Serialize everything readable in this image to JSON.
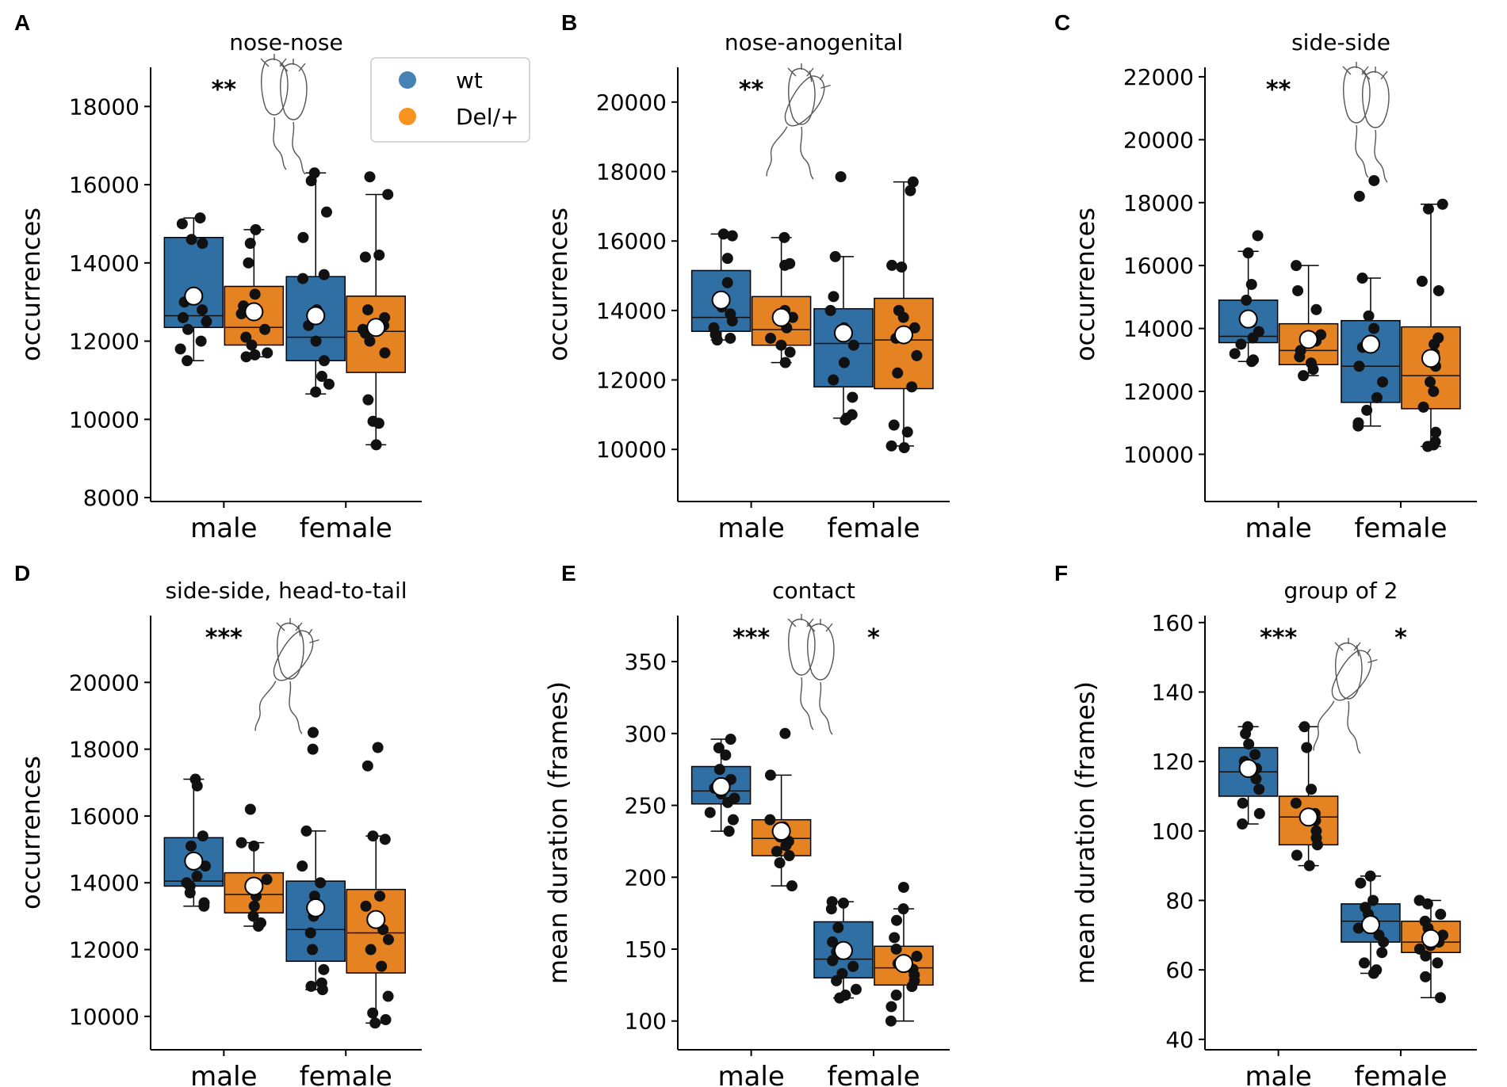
{
  "colors": {
    "wt": "#2f6fa3",
    "del": "#e58322"
  },
  "legend": {
    "items": [
      {
        "label": "wt",
        "color": "#4682b4"
      },
      {
        "label": "Del/+",
        "color": "#f7931e"
      }
    ]
  },
  "chart_data": [
    {
      "type": "box",
      "letter": "A",
      "title": "nose-nose",
      "ylabel": "occurrences",
      "ylim": [
        7900,
        19000
      ],
      "yticks": [
        "8000",
        "10000",
        "12000",
        "14000",
        "16000",
        "18000"
      ],
      "categories": [
        "male",
        "female"
      ],
      "significance": [
        "**",
        ""
      ],
      "groups": [
        {
          "category": "male",
          "genotype": "wt",
          "q1": 12350,
          "median": 12650,
          "q3": 14650,
          "whisker_low": 11500,
          "whisker_high": 15150,
          "mean": 13150,
          "points": [
            15150,
            15000,
            14600,
            14500,
            13000,
            12800,
            12600,
            12500,
            12300,
            12000,
            11800,
            11500
          ]
        },
        {
          "category": "male",
          "genotype": "Del/+",
          "q1": 11900,
          "median": 12350,
          "q3": 13400,
          "whisker_low": 11600,
          "whisker_high": 14850,
          "mean": 12750,
          "points": [
            14850,
            14500,
            14000,
            13200,
            12900,
            12700,
            12300,
            12100,
            11900,
            11700,
            11600,
            11650
          ]
        },
        {
          "category": "female",
          "genotype": "wt",
          "q1": 11500,
          "median": 12100,
          "q3": 13650,
          "whisker_low": 10650,
          "whisker_high": 16300,
          "mean": 12650,
          "points": [
            16300,
            16100,
            15300,
            14650,
            13700,
            13600,
            12800,
            12400,
            12000,
            11500,
            11100,
            10900,
            10700
          ]
        },
        {
          "category": "female",
          "genotype": "Del/+",
          "q1": 11200,
          "median": 12250,
          "q3": 13150,
          "whisker_low": 9350,
          "whisker_high": 15750,
          "mean": 12350,
          "points": [
            16200,
            15750,
            14200,
            14150,
            12800,
            12600,
            12400,
            12300,
            12200,
            12000,
            11700,
            10500,
            9950,
            9900,
            9350
          ]
        }
      ]
    },
    {
      "type": "box",
      "letter": "B",
      "title": "nose-anogenital",
      "ylabel": "occurrences",
      "ylim": [
        8500,
        21000
      ],
      "yticks": [
        "10000",
        "12000",
        "14000",
        "16000",
        "18000",
        "20000"
      ],
      "categories": [
        "male",
        "female"
      ],
      "significance": [
        "**",
        ""
      ],
      "groups": [
        {
          "category": "male",
          "genotype": "wt",
          "q1": 13400,
          "median": 13800,
          "q3": 15150,
          "whisker_low": 13150,
          "whisker_high": 16200,
          "mean": 14300,
          "points": [
            16200,
            16150,
            15500,
            14800,
            14100,
            13900,
            13700,
            13500,
            13300,
            13200,
            13150
          ]
        },
        {
          "category": "male",
          "genotype": "Del/+",
          "q1": 13000,
          "median": 13450,
          "q3": 14400,
          "whisker_low": 12500,
          "whisker_high": 16100,
          "mean": 13800,
          "points": [
            16100,
            15350,
            15300,
            14000,
            13800,
            13500,
            13200,
            13000,
            12800,
            12500
          ]
        },
        {
          "category": "female",
          "genotype": "wt",
          "q1": 11800,
          "median": 13050,
          "q3": 14050,
          "whisker_low": 10900,
          "whisker_high": 15550,
          "mean": 13350,
          "points": [
            17850,
            15550,
            14400,
            14000,
            13500,
            13000,
            12500,
            12000,
            11500,
            11000,
            10900,
            10850
          ]
        },
        {
          "category": "female",
          "genotype": "Del/+",
          "q1": 11750,
          "median": 13150,
          "q3": 14350,
          "whisker_low": 10100,
          "whisker_high": 17700,
          "mean": 13300,
          "points": [
            17700,
            17450,
            15300,
            15250,
            14000,
            13800,
            13500,
            13200,
            12700,
            12200,
            11800,
            10700,
            10500,
            10100,
            10050
          ]
        }
      ]
    },
    {
      "type": "box",
      "letter": "C",
      "title": "side-side",
      "ylabel": "occurrences",
      "ylim": [
        8500,
        22300
      ],
      "yticks": [
        "10000",
        "12000",
        "14000",
        "16000",
        "18000",
        "20000",
        "22000"
      ],
      "categories": [
        "male",
        "female"
      ],
      "significance": [
        "**",
        ""
      ],
      "groups": [
        {
          "category": "male",
          "genotype": "wt",
          "q1": 13550,
          "median": 13750,
          "q3": 14900,
          "whisker_low": 12950,
          "whisker_high": 16450,
          "mean": 14300,
          "points": [
            16950,
            16400,
            15400,
            14900,
            14200,
            13900,
            13700,
            13500,
            13200,
            13000,
            12950
          ]
        },
        {
          "category": "male",
          "genotype": "Del/+",
          "q1": 12850,
          "median": 13300,
          "q3": 14150,
          "whisker_low": 12500,
          "whisker_high": 16000,
          "mean": 13650,
          "points": [
            16000,
            15200,
            14600,
            13800,
            13600,
            13300,
            13100,
            12900,
            12700,
            12500
          ]
        },
        {
          "category": "female",
          "genotype": "wt",
          "q1": 11650,
          "median": 12800,
          "q3": 14250,
          "whisker_low": 10900,
          "whisker_high": 15600,
          "mean": 13500,
          "points": [
            18700,
            18200,
            15600,
            14400,
            14000,
            13400,
            12800,
            12300,
            11800,
            11400,
            11000,
            10900
          ]
        },
        {
          "category": "female",
          "genotype": "Del/+",
          "q1": 11450,
          "median": 12500,
          "q3": 14050,
          "whisker_low": 10250,
          "whisker_high": 17950,
          "mean": 13050,
          "points": [
            17950,
            17800,
            15500,
            15200,
            13700,
            13500,
            13200,
            12800,
            12300,
            12000,
            11500,
            10700,
            10400,
            10300,
            10250
          ]
        }
      ]
    },
    {
      "type": "box",
      "letter": "D",
      "title": "side-side, head-to-tail",
      "ylabel": "occurrences",
      "ylim": [
        9000,
        22000
      ],
      "yticks": [
        "10000",
        "12000",
        "14000",
        "16000",
        "18000",
        "20000"
      ],
      "categories": [
        "male",
        "female"
      ],
      "significance": [
        "***",
        ""
      ],
      "groups": [
        {
          "category": "male",
          "genotype": "wt",
          "q1": 13900,
          "median": 14050,
          "q3": 15350,
          "whisker_low": 13300,
          "whisker_high": 17100,
          "mean": 14650,
          "points": [
            17100,
            16900,
            15400,
            15100,
            14500,
            14200,
            14000,
            13900,
            13700,
            13400,
            13300
          ]
        },
        {
          "category": "male",
          "genotype": "Del/+",
          "q1": 13100,
          "median": 13650,
          "q3": 14300,
          "whisker_low": 12700,
          "whisker_high": 15200,
          "mean": 13900,
          "points": [
            16200,
            15200,
            15100,
            14100,
            13900,
            13600,
            13300,
            13000,
            12800,
            12700
          ]
        },
        {
          "category": "female",
          "genotype": "wt",
          "q1": 11650,
          "median": 12600,
          "q3": 14050,
          "whisker_low": 10800,
          "whisker_high": 15550,
          "mean": 13250,
          "points": [
            18500,
            18000,
            15550,
            14500,
            14000,
            13600,
            13000,
            12500,
            12000,
            11400,
            11000,
            10900,
            10800
          ]
        },
        {
          "category": "female",
          "genotype": "Del/+",
          "q1": 11300,
          "median": 12500,
          "q3": 13800,
          "whisker_low": 9800,
          "whisker_high": 15400,
          "mean": 12900,
          "points": [
            18050,
            17500,
            15400,
            15300,
            13600,
            13300,
            12800,
            12600,
            12300,
            12000,
            11500,
            10600,
            10100,
            9900,
            9800
          ]
        }
      ]
    },
    {
      "type": "box",
      "letter": "E",
      "title": "contact",
      "ylabel": "mean duration (frames)",
      "ylim": [
        80,
        382
      ],
      "yticks": [
        "100",
        "150",
        "200",
        "250",
        "300",
        "350"
      ],
      "categories": [
        "male",
        "female"
      ],
      "significance": [
        "***",
        "*"
      ],
      "groups": [
        {
          "category": "male",
          "genotype": "wt",
          "q1": 251,
          "median": 260,
          "q3": 277,
          "whisker_low": 232,
          "whisker_high": 296,
          "mean": 263,
          "points": [
            296,
            290,
            285,
            275,
            268,
            262,
            258,
            255,
            252,
            245,
            240,
            232
          ]
        },
        {
          "category": "male",
          "genotype": "Del/+",
          "q1": 215,
          "median": 227,
          "q3": 240,
          "whisker_low": 194,
          "whisker_high": 271,
          "mean": 232,
          "points": [
            300,
            271,
            240,
            235,
            228,
            225,
            222,
            218,
            215,
            210,
            194
          ]
        },
        {
          "category": "female",
          "genotype": "wt",
          "q1": 130,
          "median": 143,
          "q3": 169,
          "whisker_low": 116,
          "whisker_high": 183,
          "mean": 149,
          "points": [
            183,
            182,
            178,
            165,
            155,
            148,
            142,
            138,
            133,
            128,
            122,
            118,
            116
          ]
        },
        {
          "category": "female",
          "genotype": "Del/+",
          "q1": 125,
          "median": 137,
          "q3": 152,
          "whisker_low": 100,
          "whisker_high": 178,
          "mean": 140,
          "points": [
            193,
            178,
            170,
            158,
            150,
            145,
            140,
            136,
            132,
            128,
            124,
            118,
            110,
            100
          ]
        }
      ]
    },
    {
      "type": "box",
      "letter": "F",
      "title": "group of 2",
      "ylabel": "mean duration (frames)",
      "ylim": [
        37,
        162
      ],
      "yticks": [
        "40",
        "60",
        "80",
        "100",
        "120",
        "140",
        "160"
      ],
      "categories": [
        "male",
        "female"
      ],
      "significance": [
        "***",
        "*"
      ],
      "groups": [
        {
          "category": "male",
          "genotype": "wt",
          "q1": 110,
          "median": 117,
          "q3": 124,
          "whisker_low": 102,
          "whisker_high": 130,
          "mean": 118,
          "points": [
            130,
            128,
            125,
            122,
            120,
            118,
            115,
            112,
            108,
            105,
            102
          ]
        },
        {
          "category": "male",
          "genotype": "Del/+",
          "q1": 96,
          "median": 104,
          "q3": 110,
          "whisker_low": 90,
          "whisker_high": 130,
          "mean": 104,
          "points": [
            130,
            124,
            112,
            108,
            105,
            103,
            100,
            98,
            96,
            93,
            90
          ]
        },
        {
          "category": "female",
          "genotype": "wt",
          "q1": 68,
          "median": 74,
          "q3": 79,
          "whisker_low": 59,
          "whisker_high": 87,
          "mean": 73,
          "points": [
            87,
            85,
            80,
            78,
            76,
            74,
            72,
            70,
            68,
            65,
            62,
            60,
            59
          ]
        },
        {
          "category": "female",
          "genotype": "Del/+",
          "q1": 65,
          "median": 68,
          "q3": 74,
          "whisker_low": 52,
          "whisker_high": 80,
          "mean": 69,
          "points": [
            80,
            79,
            76,
            74,
            72,
            70,
            68,
            67,
            66,
            64,
            62,
            58,
            52
          ]
        }
      ]
    }
  ]
}
